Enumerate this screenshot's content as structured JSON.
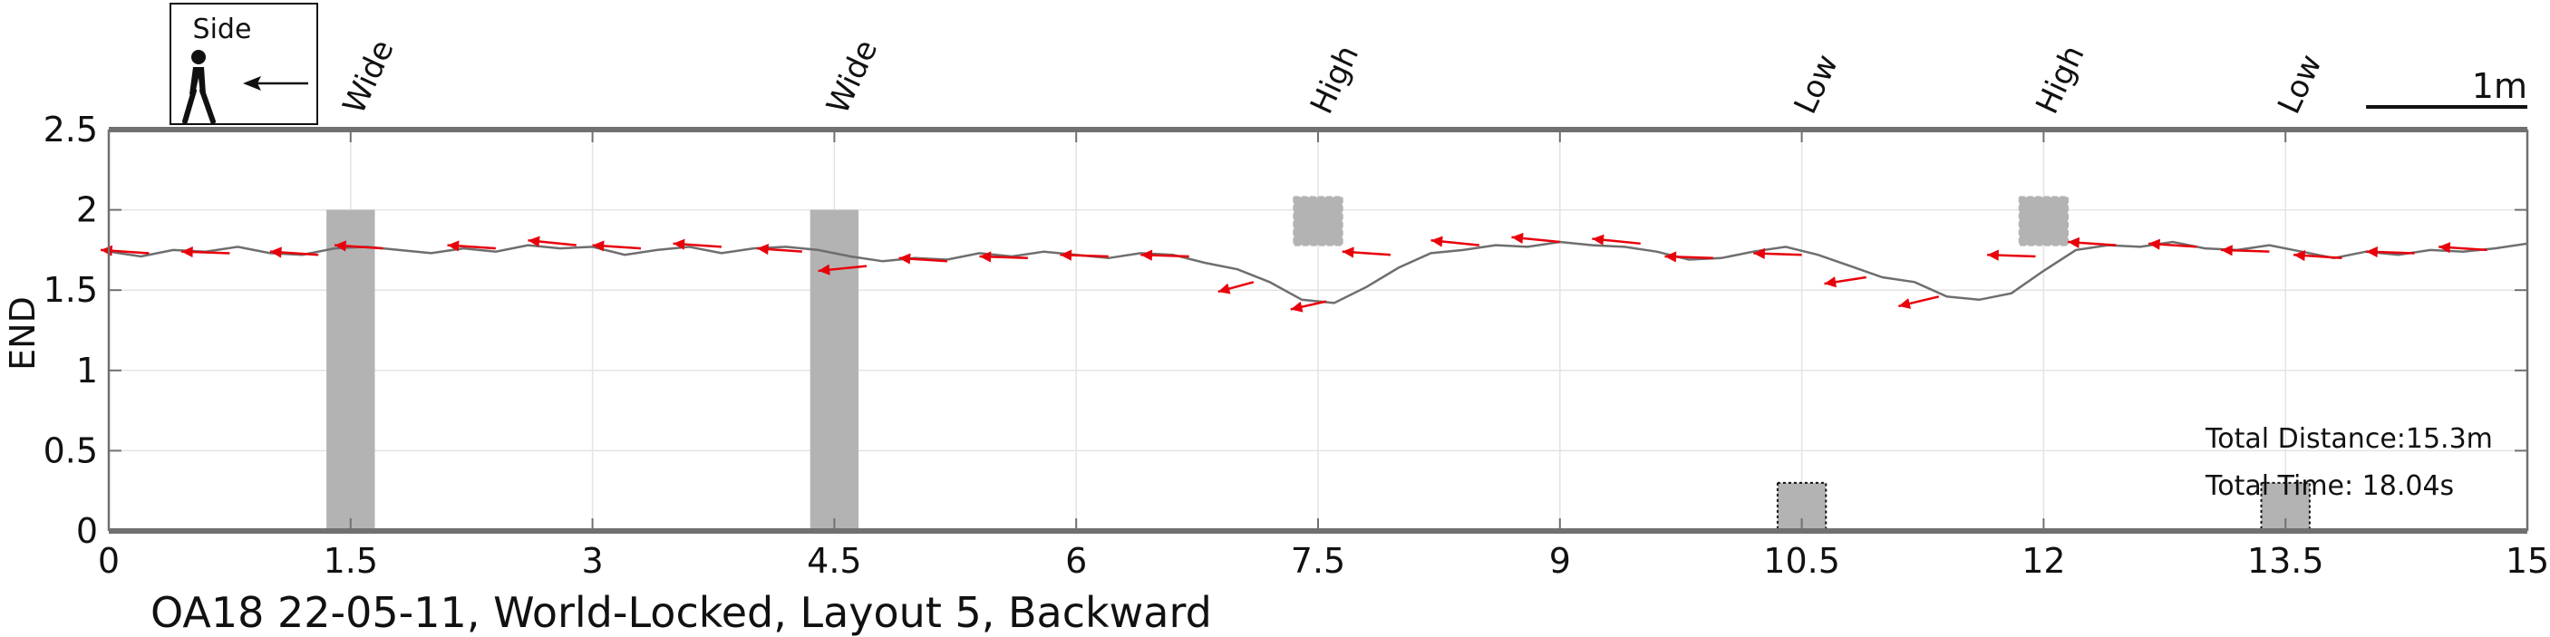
{
  "chart_data": {
    "type": "line",
    "title": "OA18 22-05-11, World-Locked, Layout 5, Backward",
    "xlabel": "",
    "ylabel": "END",
    "xlim": [
      0,
      15
    ],
    "ylim": [
      0,
      2.5
    ],
    "xticks": [
      "0",
      "1.5",
      "3",
      "4.5",
      "6",
      "7.5",
      "9",
      "10.5",
      "12",
      "13.5",
      "15"
    ],
    "yticks": [
      "0",
      "0.5",
      "1",
      "1.5",
      "2",
      "2.5"
    ],
    "grid": true,
    "legend": {
      "title": "Side",
      "placement": "top-left",
      "icon": "walking-person-icon",
      "direction": "arrow-left"
    },
    "scale_bar": {
      "label": "1m",
      "length": 1.0
    },
    "annotations": [
      {
        "label": "Total Distance:15.3m"
      },
      {
        "label": "Total Time: 18.04s"
      }
    ],
    "obstacles": [
      {
        "label": "Wide",
        "x": 1.5,
        "y0": 0,
        "y1": 2.0,
        "width": 0.3,
        "style": "solid"
      },
      {
        "label": "Wide",
        "x": 4.5,
        "y0": 0,
        "y1": 2.0,
        "width": 0.3,
        "style": "solid"
      },
      {
        "label": "High",
        "x": 7.5,
        "y0": 1.78,
        "y1": 2.08,
        "width": 0.3,
        "style": "dashed"
      },
      {
        "label": "Low",
        "x": 10.5,
        "y0": 0,
        "y1": 0.3,
        "width": 0.3,
        "style": "dotted"
      },
      {
        "label": "High",
        "x": 12.0,
        "y0": 1.78,
        "y1": 2.08,
        "width": 0.3,
        "style": "dashed"
      },
      {
        "label": "Low",
        "x": 13.5,
        "y0": 0,
        "y1": 0.3,
        "width": 0.3,
        "style": "dotted"
      }
    ],
    "series": [
      {
        "path": [
          [
            0.0,
            1.74
          ],
          [
            0.2,
            1.71
          ],
          [
            0.4,
            1.75
          ],
          [
            0.6,
            1.74
          ],
          [
            0.8,
            1.77
          ],
          [
            1.0,
            1.73
          ],
          [
            1.2,
            1.72
          ],
          [
            1.4,
            1.76
          ],
          [
            1.6,
            1.77
          ],
          [
            1.8,
            1.75
          ],
          [
            2.0,
            1.73
          ],
          [
            2.2,
            1.76
          ],
          [
            2.4,
            1.74
          ],
          [
            2.6,
            1.78
          ],
          [
            2.8,
            1.76
          ],
          [
            3.0,
            1.77
          ],
          [
            3.2,
            1.72
          ],
          [
            3.4,
            1.75
          ],
          [
            3.6,
            1.77
          ],
          [
            3.8,
            1.73
          ],
          [
            4.0,
            1.76
          ],
          [
            4.2,
            1.77
          ],
          [
            4.4,
            1.75
          ],
          [
            4.6,
            1.71
          ],
          [
            4.8,
            1.68
          ],
          [
            5.0,
            1.7
          ],
          [
            5.2,
            1.69
          ],
          [
            5.4,
            1.73
          ],
          [
            5.6,
            1.71
          ],
          [
            5.8,
            1.74
          ],
          [
            6.0,
            1.72
          ],
          [
            6.2,
            1.7
          ],
          [
            6.4,
            1.73
          ],
          [
            6.6,
            1.72
          ],
          [
            6.8,
            1.67
          ],
          [
            7.0,
            1.63
          ],
          [
            7.2,
            1.55
          ],
          [
            7.4,
            1.44
          ],
          [
            7.6,
            1.42
          ],
          [
            7.8,
            1.52
          ],
          [
            8.0,
            1.64
          ],
          [
            8.2,
            1.73
          ],
          [
            8.4,
            1.75
          ],
          [
            8.6,
            1.78
          ],
          [
            8.8,
            1.77
          ],
          [
            9.0,
            1.8
          ],
          [
            9.2,
            1.78
          ],
          [
            9.4,
            1.77
          ],
          [
            9.6,
            1.74
          ],
          [
            9.8,
            1.69
          ],
          [
            10.0,
            1.7
          ],
          [
            10.2,
            1.74
          ],
          [
            10.4,
            1.77
          ],
          [
            10.6,
            1.72
          ],
          [
            10.8,
            1.65
          ],
          [
            11.0,
            1.58
          ],
          [
            11.2,
            1.55
          ],
          [
            11.4,
            1.46
          ],
          [
            11.6,
            1.44
          ],
          [
            11.8,
            1.48
          ],
          [
            12.0,
            1.62
          ],
          [
            12.2,
            1.75
          ],
          [
            12.4,
            1.78
          ],
          [
            12.6,
            1.77
          ],
          [
            12.8,
            1.8
          ],
          [
            13.0,
            1.76
          ],
          [
            13.2,
            1.75
          ],
          [
            13.4,
            1.78
          ],
          [
            13.6,
            1.74
          ],
          [
            13.8,
            1.7
          ],
          [
            14.0,
            1.74
          ],
          [
            14.2,
            1.72
          ],
          [
            14.4,
            1.75
          ],
          [
            14.6,
            1.74
          ],
          [
            14.8,
            1.76
          ],
          [
            15.0,
            1.79
          ]
        ],
        "color": "#6e6e6e"
      }
    ],
    "orientation_arrows": {
      "color": "#e8000b",
      "points": [
        [
          0.25,
          1.73,
          -0.3,
          0.02
        ],
        [
          0.75,
          1.73,
          -0.3,
          0.01
        ],
        [
          1.3,
          1.72,
          -0.3,
          0.02
        ],
        [
          1.7,
          1.76,
          -0.3,
          0.02
        ],
        [
          2.4,
          1.76,
          -0.3,
          0.02
        ],
        [
          2.9,
          1.78,
          -0.3,
          0.03
        ],
        [
          3.3,
          1.76,
          -0.3,
          0.02
        ],
        [
          3.8,
          1.77,
          -0.3,
          0.02
        ],
        [
          4.3,
          1.74,
          -0.28,
          0.02
        ],
        [
          4.7,
          1.65,
          -0.3,
          -0.03
        ],
        [
          5.2,
          1.68,
          -0.3,
          0.02
        ],
        [
          5.7,
          1.7,
          -0.3,
          0.01
        ],
        [
          6.2,
          1.71,
          -0.3,
          0.01
        ],
        [
          6.7,
          1.71,
          -0.3,
          0.01
        ],
        [
          7.1,
          1.55,
          -0.22,
          -0.06
        ],
        [
          7.55,
          1.43,
          -0.22,
          -0.05
        ],
        [
          7.95,
          1.72,
          -0.3,
          0.02
        ],
        [
          8.5,
          1.78,
          -0.3,
          0.03
        ],
        [
          9.0,
          1.8,
          -0.3,
          0.03
        ],
        [
          9.5,
          1.79,
          -0.3,
          0.03
        ],
        [
          9.95,
          1.7,
          -0.3,
          0.01
        ],
        [
          10.5,
          1.72,
          -0.3,
          0.01
        ],
        [
          10.9,
          1.58,
          -0.26,
          -0.04
        ],
        [
          11.35,
          1.46,
          -0.25,
          -0.06
        ],
        [
          11.95,
          1.71,
          -0.3,
          0.01
        ],
        [
          12.45,
          1.78,
          -0.3,
          0.02
        ],
        [
          12.95,
          1.77,
          -0.3,
          0.02
        ],
        [
          13.4,
          1.74,
          -0.3,
          0.01
        ],
        [
          13.85,
          1.7,
          -0.3,
          0.02
        ],
        [
          14.3,
          1.73,
          -0.3,
          0.01
        ],
        [
          14.75,
          1.75,
          -0.3,
          0.02
        ]
      ]
    }
  }
}
